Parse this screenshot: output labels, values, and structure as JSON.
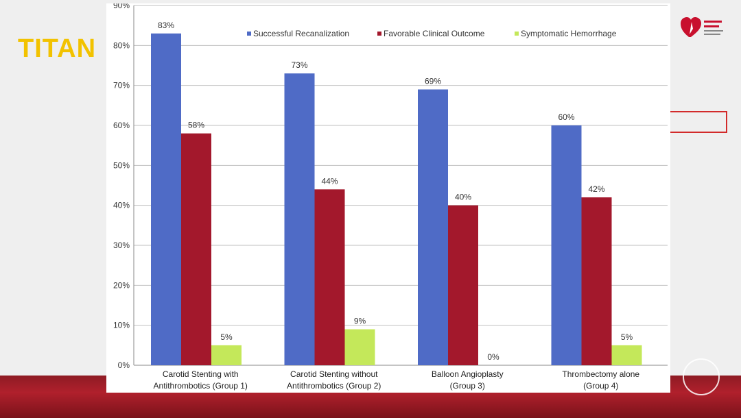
{
  "slide": {
    "title": "TITAN"
  },
  "colors": {
    "series": [
      "#4f6bc6",
      "#a3182c",
      "#c4e85a"
    ],
    "gridline": "#bfbfbf",
    "title": "#f2c200"
  },
  "chart_data": {
    "type": "bar",
    "title": "",
    "xlabel": "",
    "ylabel": "",
    "ylim": [
      0,
      90
    ],
    "yticks": [
      "0%",
      "10%",
      "20%",
      "30%",
      "40%",
      "50%",
      "60%",
      "70%",
      "80%",
      "90%"
    ],
    "grid": true,
    "legend_position": "top",
    "categories": [
      [
        "Carotid Stenting with",
        "Antithrombotics (Group 1)"
      ],
      [
        "Carotid Stenting without",
        "Antithrombotics (Group 2)"
      ],
      [
        "Balloon Angioplasty",
        "(Group 3)"
      ],
      [
        "Thrombectomy alone",
        "(Group 4)"
      ]
    ],
    "series": [
      {
        "name": "Successful Recanalization",
        "values": [
          83,
          73,
          69,
          60
        ],
        "labels": [
          "83%",
          "73%",
          "69%",
          "60%"
        ]
      },
      {
        "name": "Favorable Clinical Outcome",
        "values": [
          58,
          44,
          40,
          42
        ],
        "labels": [
          "58%",
          "44%",
          "40%",
          "42%"
        ]
      },
      {
        "name": "Symptomatic Hemorrhage",
        "values": [
          5,
          9,
          0,
          5
        ],
        "labels": [
          "5%",
          "9%",
          "0%",
          "5%"
        ]
      }
    ]
  }
}
